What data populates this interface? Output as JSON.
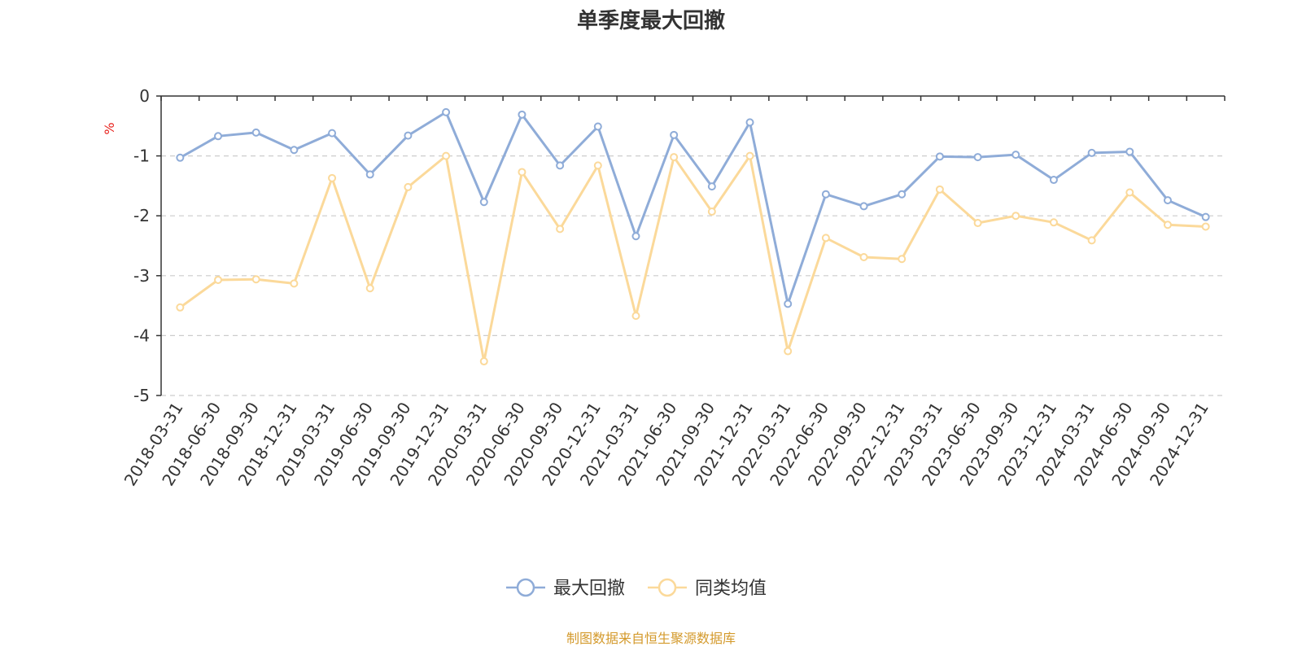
{
  "chart_data": {
    "type": "line",
    "title": "单季度最大回撤",
    "ylabel": "%",
    "ylim": [
      -5,
      0
    ],
    "yticks": [
      0,
      -1,
      -2,
      -3,
      -4,
      -5
    ],
    "grid": true,
    "legend_position": "bottom",
    "categories": [
      "2018-03-31",
      "2018-06-30",
      "2018-09-30",
      "2018-12-31",
      "2019-03-31",
      "2019-06-30",
      "2019-09-30",
      "2019-12-31",
      "2020-03-31",
      "2020-06-30",
      "2020-09-30",
      "2020-12-31",
      "2021-03-31",
      "2021-06-30",
      "2021-09-30",
      "2021-12-31",
      "2022-03-31",
      "2022-06-30",
      "2022-09-30",
      "2022-12-31",
      "2023-03-31",
      "2023-06-30",
      "2023-09-30",
      "2023-12-31",
      "2024-03-31",
      "2024-06-30",
      "2024-09-30",
      "2024-12-31"
    ],
    "series": [
      {
        "name": "最大回撤",
        "color": "#8facd8",
        "values": [
          -1.03,
          -0.67,
          -0.61,
          -0.9,
          -0.62,
          -1.31,
          -0.66,
          -0.27,
          -1.77,
          -0.31,
          -1.16,
          -0.51,
          -2.34,
          -0.65,
          -1.51,
          -0.44,
          -3.47,
          -1.64,
          -1.84,
          -1.64,
          -1.01,
          -1.02,
          -0.98,
          -1.4,
          -0.95,
          -0.93,
          -1.74,
          -2.02
        ]
      },
      {
        "name": "同类均值",
        "color": "#fbd99a",
        "values": [
          -3.53,
          -3.07,
          -3.06,
          -3.13,
          -1.37,
          -3.21,
          -1.52,
          -1.0,
          -4.43,
          -1.27,
          -2.22,
          -1.16,
          -3.67,
          -1.02,
          -1.93,
          -1.0,
          -4.26,
          -2.37,
          -2.69,
          -2.72,
          -1.56,
          -2.12,
          -2.0,
          -2.11,
          -2.41,
          -1.61,
          -2.15,
          -2.18
        ]
      }
    ]
  },
  "colors": {
    "axis": "#333333",
    "grid": "#cccccc",
    "unit": "#e8231e",
    "source": "#d49a2c"
  },
  "source_text": "制图数据来自恒生聚源数据库"
}
